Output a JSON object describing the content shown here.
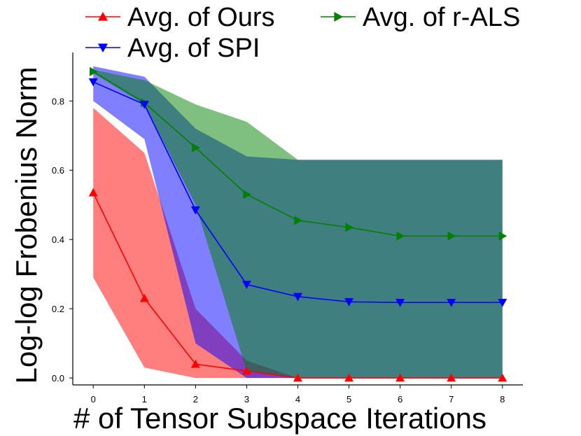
{
  "chart_data": {
    "type": "line",
    "xlabel": "# of Tensor Subspace Iterations",
    "ylabel": "Log-log Frobenius Norm",
    "x": [
      0,
      1,
      2,
      3,
      4,
      5,
      6,
      7,
      8
    ],
    "xlim": [
      -0.4,
      8.4
    ],
    "ylim": [
      -0.02,
      0.94
    ],
    "xticks": [
      "0",
      "1",
      "2",
      "3",
      "4",
      "5",
      "6",
      "7",
      "8"
    ],
    "yticks": [
      "0.0",
      "0.2",
      "0.4",
      "0.6",
      "0.8"
    ],
    "grid": false,
    "legend_position": "top",
    "series": [
      {
        "name": "Avg. of Ours",
        "color": "#ff0000",
        "band_color": "#ff0000",
        "marker": "triangle-up",
        "values": [
          0.535,
          0.23,
          0.04,
          0.02,
          0.0,
          0.0,
          0.0,
          0.0,
          0.0
        ],
        "lower": [
          0.29,
          0.03,
          0.0,
          0.0,
          0.0,
          0.0,
          0.0,
          0.0,
          0.0
        ],
        "upper": [
          0.78,
          0.65,
          0.2,
          0.05,
          0.0,
          0.0,
          0.0,
          0.0,
          0.0
        ]
      },
      {
        "name": "Avg. of SPI",
        "color": "#0000ff",
        "band_color": "#0000ff",
        "marker": "triangle-down",
        "values": [
          0.855,
          0.79,
          0.485,
          0.27,
          0.235,
          0.22,
          0.218,
          0.218,
          0.218
        ],
        "lower": [
          0.8,
          0.69,
          0.1,
          0.0,
          0.0,
          0.0,
          0.0,
          0.0,
          0.0
        ],
        "upper": [
          0.9,
          0.87,
          0.72,
          0.64,
          0.63,
          0.63,
          0.63,
          0.63,
          0.63
        ]
      },
      {
        "name": "Avg. of r-ALS",
        "color": "#008000",
        "band_color": "#008000",
        "marker": "triangle-right",
        "values": [
          0.885,
          0.795,
          0.665,
          0.53,
          0.455,
          0.435,
          0.41,
          0.41,
          0.41
        ],
        "lower": [
          0.88,
          0.79,
          0.5,
          0.02,
          0.0,
          0.0,
          0.0,
          0.0,
          0.0
        ],
        "upper": [
          0.89,
          0.86,
          0.79,
          0.74,
          0.63,
          0.63,
          0.63,
          0.63,
          0.63
        ]
      }
    ]
  }
}
